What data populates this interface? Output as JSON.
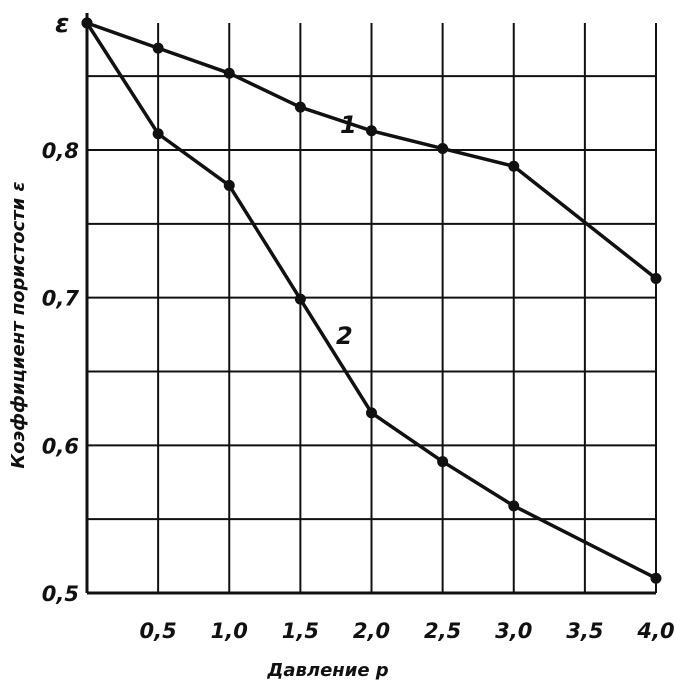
{
  "chart_data": {
    "type": "line",
    "title": "",
    "xlabel": "Давление p",
    "ylabel": "Коэффициент пористости ε",
    "y_axis_symbol": "ε",
    "xlim": [
      0,
      4.0
    ],
    "ylim": [
      0.5,
      0.886
    ],
    "x_ticks": [
      0.5,
      1.0,
      1.5,
      2.0,
      2.5,
      3.0,
      3.5,
      4.0
    ],
    "x_tick_labels": [
      "0,5",
      "1,0",
      "1,5",
      "2,0",
      "2,5",
      "3,0",
      "3,5",
      "4,0"
    ],
    "y_ticks": [
      0.5,
      0.6,
      0.7,
      0.8
    ],
    "y_tick_labels": [
      "0,5",
      "0,6",
      "0,7",
      "0,8"
    ],
    "grid": true,
    "series": [
      {
        "name": "1",
        "x": [
          0,
          0.5,
          1.0,
          1.5,
          2.0,
          2.5,
          3.0,
          4.0
        ],
        "y": [
          0.886,
          0.869,
          0.852,
          0.829,
          0.813,
          0.801,
          0.789,
          0.713
        ]
      },
      {
        "name": "2",
        "x": [
          0,
          0.5,
          1.0,
          1.5,
          2.0,
          2.5,
          3.0,
          4.0
        ],
        "y": [
          0.886,
          0.811,
          0.776,
          0.699,
          0.622,
          0.589,
          0.559,
          0.51
        ]
      }
    ]
  }
}
